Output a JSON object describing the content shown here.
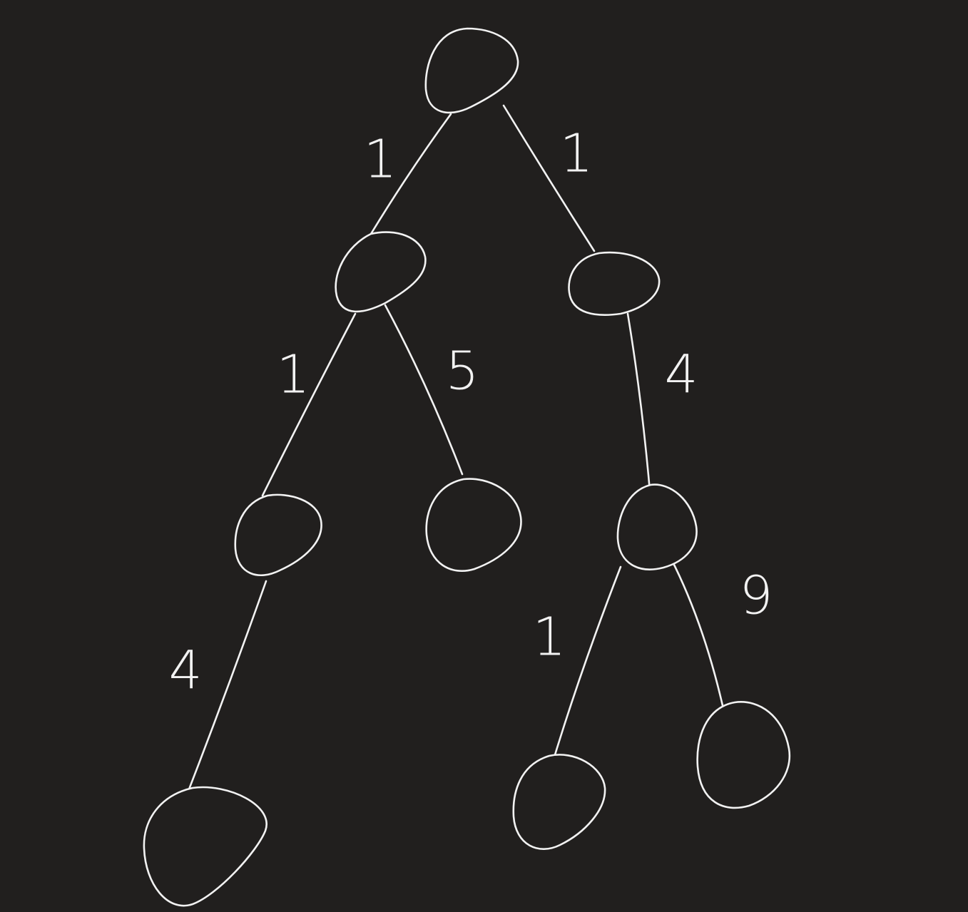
{
  "diagram": {
    "type": "tree",
    "colors": {
      "background": "#211f1e",
      "stroke": "#f2f2f2"
    },
    "nodes": [
      {
        "id": "root"
      },
      {
        "id": "n1"
      },
      {
        "id": "n2"
      },
      {
        "id": "n3"
      },
      {
        "id": "n4"
      },
      {
        "id": "n5"
      },
      {
        "id": "n6"
      },
      {
        "id": "n7"
      },
      {
        "id": "n8"
      }
    ],
    "edges": [
      {
        "id": "e-root-n1",
        "from": "root",
        "to": "n1",
        "weight": "1"
      },
      {
        "id": "e-root-n2",
        "from": "root",
        "to": "n2",
        "weight": "1"
      },
      {
        "id": "e-n1-n3",
        "from": "n1",
        "to": "n3",
        "weight": "1"
      },
      {
        "id": "e-n1-n4",
        "from": "n1",
        "to": "n4",
        "weight": "5"
      },
      {
        "id": "e-n2-n5",
        "from": "n2",
        "to": "n5",
        "weight": "4"
      },
      {
        "id": "e-n3-n6",
        "from": "n3",
        "to": "n6",
        "weight": "4"
      },
      {
        "id": "e-n5-n7",
        "from": "n5",
        "to": "n7",
        "weight": "1"
      },
      {
        "id": "e-n5-n8",
        "from": "n5",
        "to": "n8",
        "weight": "9"
      }
    ]
  }
}
